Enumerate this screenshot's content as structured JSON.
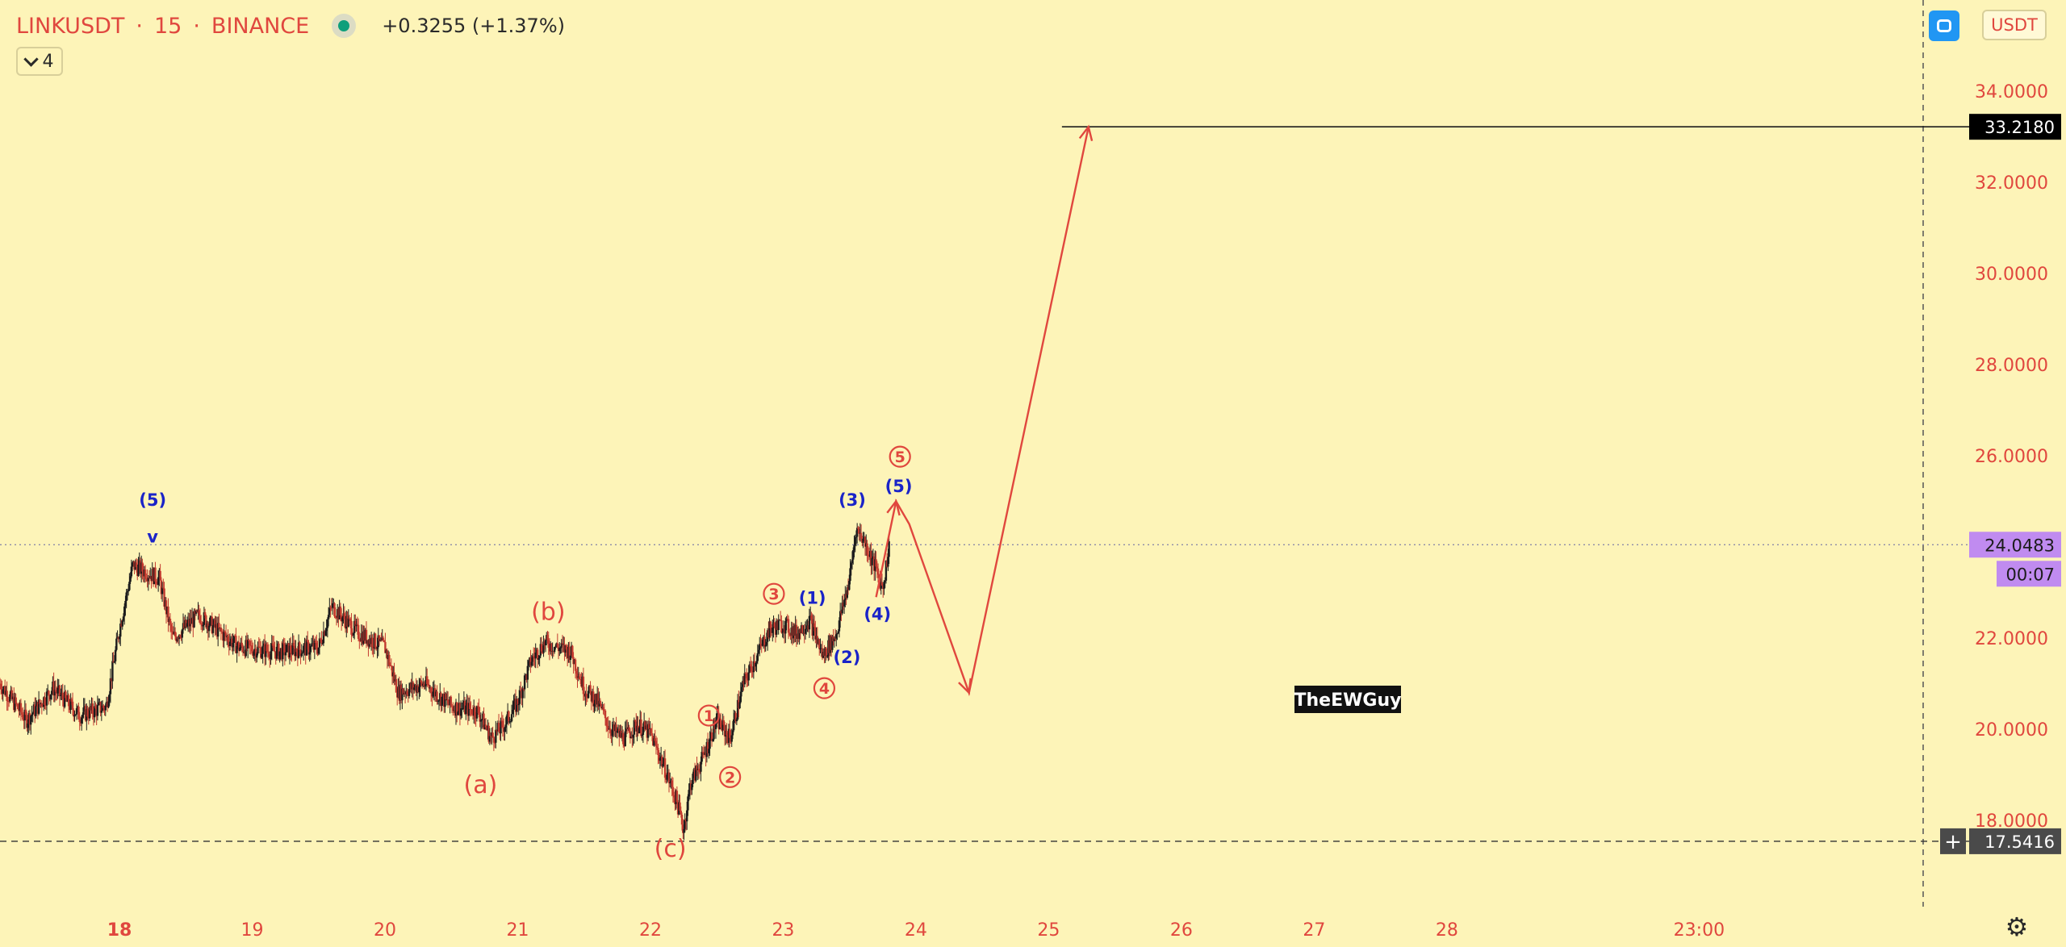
{
  "header": {
    "symbol": "LINKUSDT",
    "interval": "15",
    "exchange": "BINANCE",
    "change": "+0.3255 (+1.37%)"
  },
  "indicator_toggle": {
    "label": "4"
  },
  "currency_button": {
    "label": "USDT"
  },
  "colors": {
    "background": "#fdf4b8",
    "axis_text": "#e0473e",
    "candle_up": "#1c1c1c",
    "candle_down": "#c23a2f",
    "arrow": "#e0473e",
    "wave_red": "#e0473e",
    "wave_blue": "#1a23c8",
    "target_label": "#000000",
    "price_label": "#c08bf0",
    "low_label": "#4a4a4a"
  },
  "chart_data": {
    "type": "candlestick",
    "title": "LINKUSDT · 15 · BINANCE",
    "xlabel": "",
    "ylabel": "",
    "x_ticks": [
      "18",
      "19",
      "20",
      "21",
      "22",
      "23",
      "24",
      "25",
      "26",
      "27",
      "28",
      "23:00"
    ],
    "x_range": [
      17.1,
      31.6
    ],
    "y_ticks": [
      "18.0000",
      "20.0000",
      "22.0000",
      "24.0000",
      "26.0000",
      "28.0000",
      "30.0000",
      "32.0000",
      "34.0000"
    ],
    "y_range": [
      16.0,
      36.0
    ],
    "grid": false,
    "series": [
      {
        "type": "price_path",
        "points": [
          [
            17.1,
            21.0
          ],
          [
            17.3,
            20.2
          ],
          [
            17.5,
            20.9
          ],
          [
            17.7,
            20.3
          ],
          [
            17.9,
            20.5
          ],
          [
            18.0,
            22.2
          ],
          [
            18.1,
            23.6
          ],
          [
            18.3,
            23.3
          ],
          [
            18.4,
            22.0
          ],
          [
            18.6,
            22.5
          ],
          [
            18.9,
            21.8
          ],
          [
            19.2,
            21.7
          ],
          [
            19.5,
            21.8
          ],
          [
            19.6,
            22.7
          ],
          [
            19.8,
            22.1
          ],
          [
            20.0,
            21.8
          ],
          [
            20.1,
            20.8
          ],
          [
            20.3,
            21.0
          ],
          [
            20.5,
            20.5
          ],
          [
            20.7,
            20.4
          ],
          [
            20.8,
            19.8
          ],
          [
            20.9,
            20.1
          ],
          [
            21.0,
            20.6
          ],
          [
            21.1,
            21.5
          ],
          [
            21.2,
            21.9
          ],
          [
            21.4,
            21.7
          ],
          [
            21.5,
            20.9
          ],
          [
            21.6,
            20.6
          ],
          [
            21.7,
            20.0
          ],
          [
            21.8,
            19.8
          ],
          [
            21.9,
            20.1
          ],
          [
            22.0,
            19.9
          ],
          [
            22.1,
            19.2
          ],
          [
            22.2,
            18.4
          ],
          [
            22.25,
            17.8
          ],
          [
            22.3,
            18.8
          ],
          [
            22.4,
            19.4
          ],
          [
            22.5,
            20.2
          ],
          [
            22.6,
            19.8
          ],
          [
            22.7,
            21.0
          ],
          [
            22.8,
            21.6
          ],
          [
            22.9,
            22.2
          ],
          [
            23.0,
            22.3
          ],
          [
            23.1,
            22.1
          ],
          [
            23.2,
            22.4
          ],
          [
            23.3,
            21.6
          ],
          [
            23.4,
            22.1
          ],
          [
            23.5,
            23.3
          ],
          [
            23.55,
            24.4
          ],
          [
            23.6,
            24.2
          ],
          [
            23.7,
            23.5
          ],
          [
            23.75,
            23.1
          ],
          [
            23.8,
            24.05
          ]
        ]
      },
      {
        "type": "projection",
        "points": [
          [
            23.7,
            22.9
          ],
          [
            23.85,
            25.0
          ],
          [
            23.95,
            24.5
          ],
          [
            24.4,
            20.8
          ],
          [
            25.3,
            33.218
          ]
        ]
      }
    ],
    "horizontal_lines": [
      {
        "price": 33.218,
        "label": "33.2180",
        "style": "solid",
        "from_x": 25.1
      },
      {
        "price": 24.0483,
        "label": "24.0483",
        "style": "dotted"
      },
      {
        "price": 17.5416,
        "label": "17.5416",
        "style": "dashed"
      }
    ],
    "countdown_label": "00:07",
    "wave_labels": [
      {
        "text": "(5)",
        "x": 18.25,
        "y": 24.9,
        "color": "blue"
      },
      {
        "text": "v",
        "x": 18.25,
        "y": 24.1,
        "color": "blue"
      },
      {
        "text": "(b)",
        "x": 21.23,
        "y": 22.4,
        "color": "red"
      },
      {
        "text": "(a)",
        "x": 20.72,
        "y": 18.6,
        "color": "red"
      },
      {
        "text": "(c)",
        "x": 22.15,
        "y": 17.2,
        "color": "red"
      },
      {
        "text": "1",
        "x": 22.44,
        "y": 20.3,
        "color": "red",
        "circled": true
      },
      {
        "text": "2",
        "x": 22.6,
        "y": 18.95,
        "color": "red",
        "circled": true
      },
      {
        "text": "3",
        "x": 22.93,
        "y": 22.97,
        "color": "red",
        "circled": true
      },
      {
        "text": "4",
        "x": 23.31,
        "y": 20.9,
        "color": "red",
        "circled": true
      },
      {
        "text": "5",
        "x": 23.88,
        "y": 25.98,
        "color": "red",
        "circled": true
      },
      {
        "text": "(1)",
        "x": 23.22,
        "y": 22.75,
        "color": "blue"
      },
      {
        "text": "(2)",
        "x": 23.48,
        "y": 21.45,
        "color": "blue"
      },
      {
        "text": "(3)",
        "x": 23.52,
        "y": 24.9,
        "color": "blue"
      },
      {
        "text": "(4)",
        "x": 23.71,
        "y": 22.4,
        "color": "blue"
      },
      {
        "text": "(5)",
        "x": 23.87,
        "y": 25.2,
        "color": "blue"
      }
    ],
    "watermark": "TheEWGuy"
  }
}
